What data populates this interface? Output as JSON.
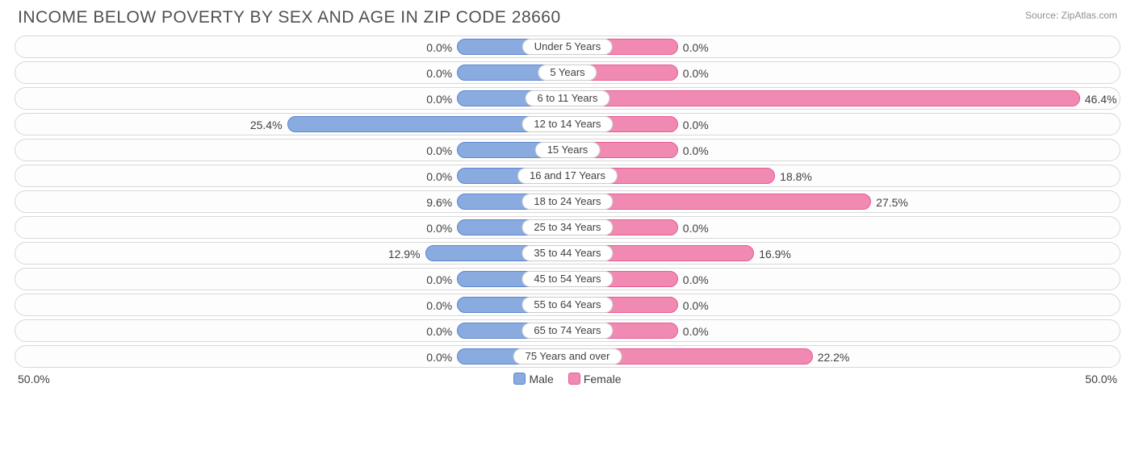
{
  "chart": {
    "type": "diverging-bar",
    "title": "INCOME BELOW POVERTY BY SEX AND AGE IN ZIP CODE 28660",
    "source": "Source: ZipAtlas.com",
    "axis_max": 50.0,
    "axis_unit": "%",
    "min_bar_pct": 10.0,
    "axis_left_label": "50.0%",
    "axis_right_label": "50.0%",
    "male_fill": "#89abe0",
    "male_stroke": "#5b86cc",
    "female_fill": "#f18ab2",
    "female_stroke": "#e65a94",
    "track_border": "#d8d8d8",
    "track_bg": "#fdfdfd",
    "text_color": "#404040",
    "title_color": "#505050",
    "title_fontsize": 21,
    "value_fontsize": 14,
    "category_fontsize": 13,
    "legend": {
      "male_label": "Male",
      "female_label": "Female"
    },
    "categories": [
      {
        "label": "Under 5 Years",
        "male": 0.0,
        "female": 0.0
      },
      {
        "label": "5 Years",
        "male": 0.0,
        "female": 0.0
      },
      {
        "label": "6 to 11 Years",
        "male": 0.0,
        "female": 46.4
      },
      {
        "label": "12 to 14 Years",
        "male": 25.4,
        "female": 0.0
      },
      {
        "label": "15 Years",
        "male": 0.0,
        "female": 0.0
      },
      {
        "label": "16 and 17 Years",
        "male": 0.0,
        "female": 18.8
      },
      {
        "label": "18 to 24 Years",
        "male": 9.6,
        "female": 27.5
      },
      {
        "label": "25 to 34 Years",
        "male": 0.0,
        "female": 0.0
      },
      {
        "label": "35 to 44 Years",
        "male": 12.9,
        "female": 16.9
      },
      {
        "label": "45 to 54 Years",
        "male": 0.0,
        "female": 0.0
      },
      {
        "label": "55 to 64 Years",
        "male": 0.0,
        "female": 0.0
      },
      {
        "label": "65 to 74 Years",
        "male": 0.0,
        "female": 0.0
      },
      {
        "label": "75 Years and over",
        "male": 0.0,
        "female": 22.2
      }
    ]
  }
}
